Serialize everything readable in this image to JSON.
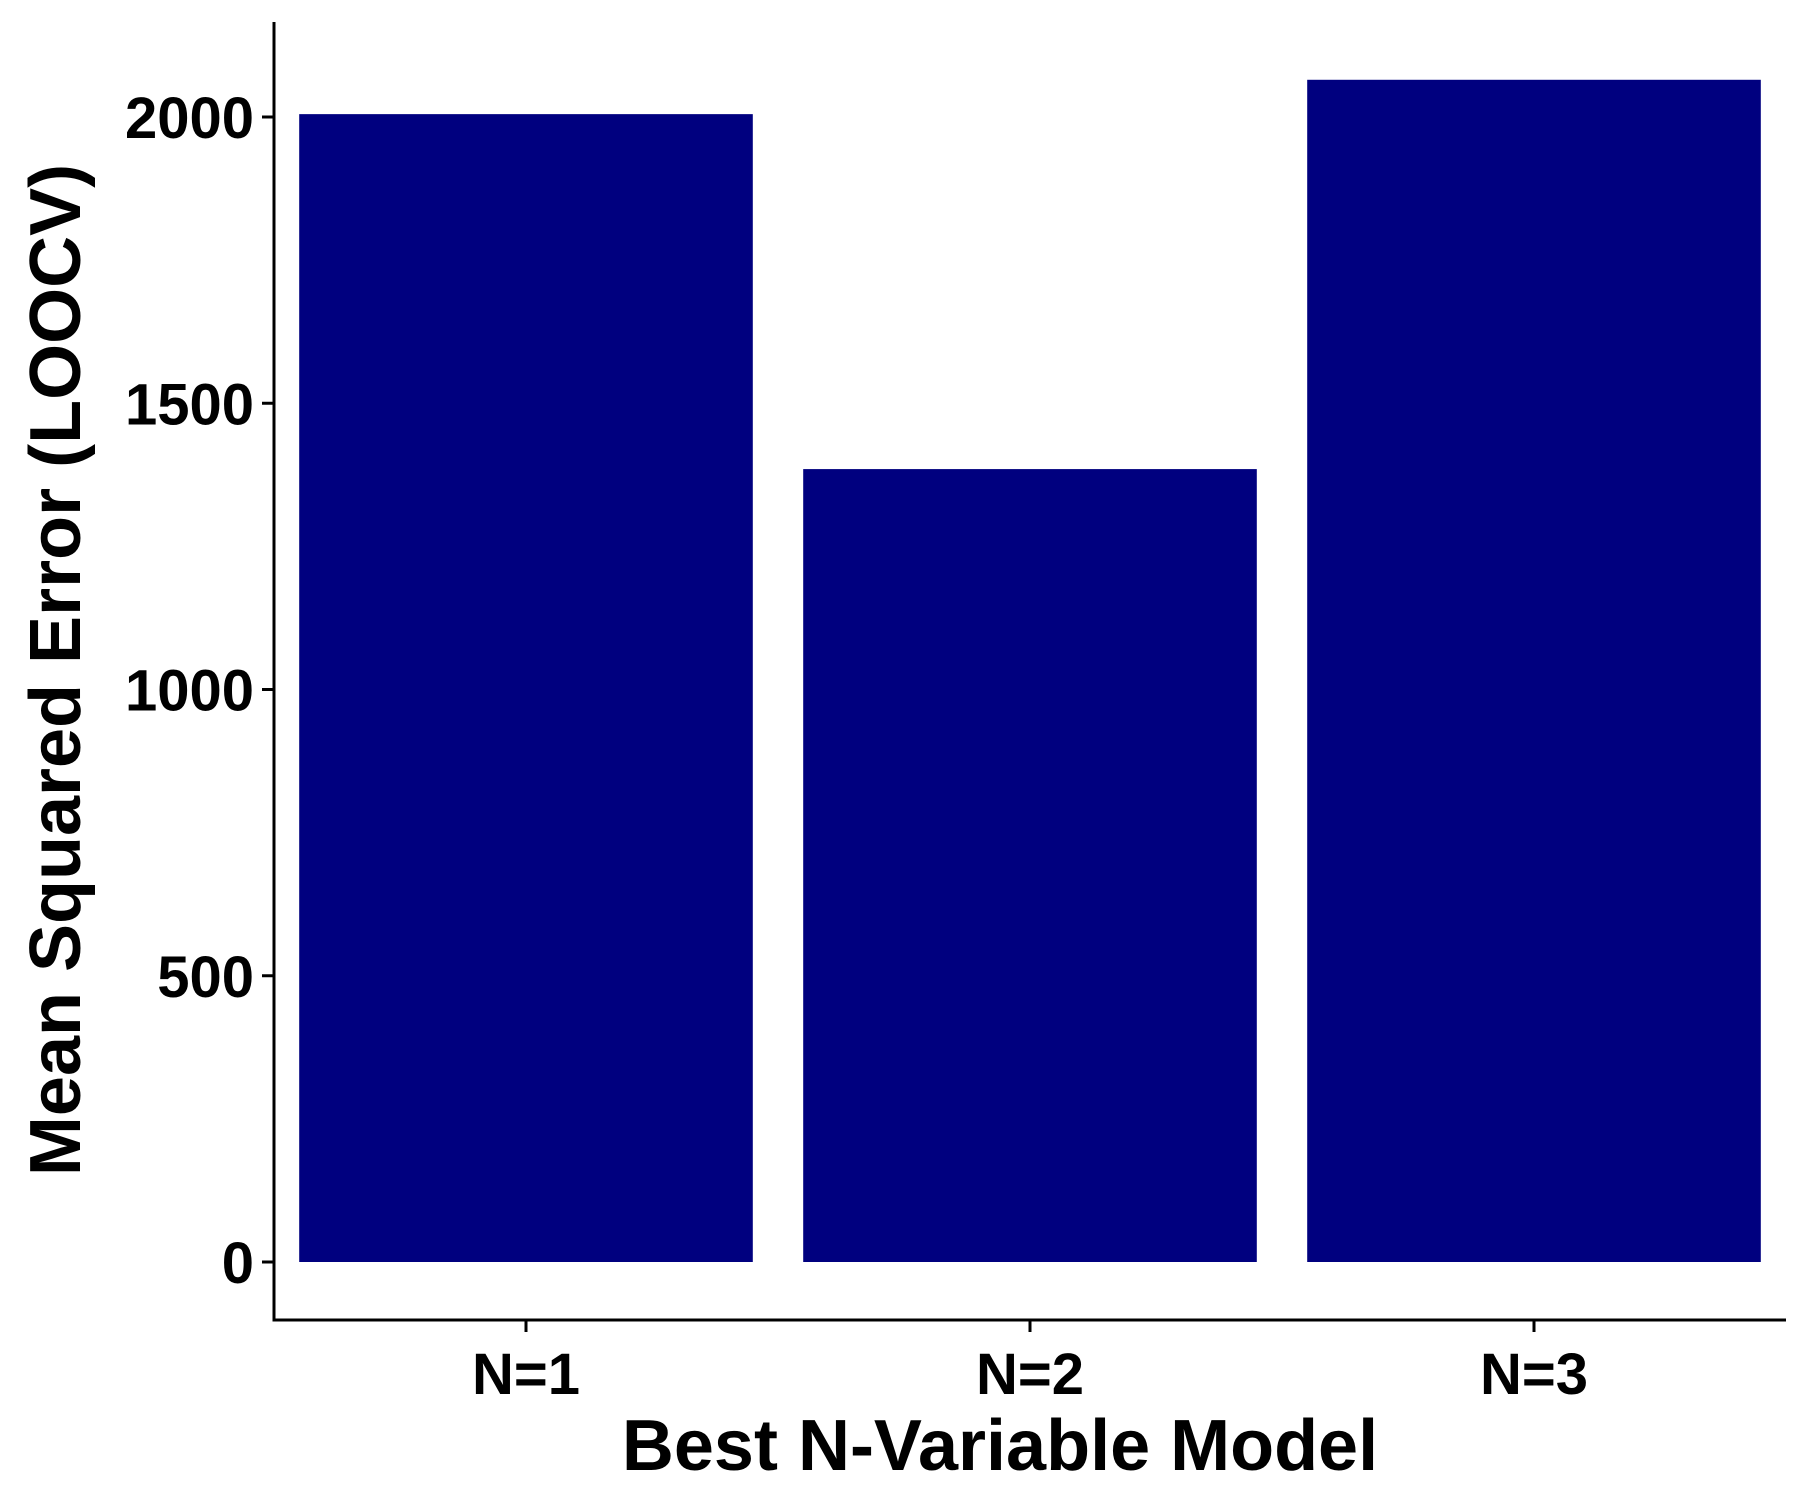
{
  "chart_data": {
    "type": "bar",
    "categories": [
      "N=1",
      "N=2",
      "N=3"
    ],
    "values": [
      2005,
      1385,
      2065
    ],
    "title": "",
    "xlabel": "Best N-Variable Model",
    "ylabel": "Mean Squared Error (LOOCV)",
    "ylim": [
      0,
      2200
    ],
    "yticks": [
      0,
      500,
      1000,
      1500,
      2000
    ],
    "grid": false,
    "bar_color": "#00007F",
    "axis_color": "#000000",
    "background": "#FFFFFF"
  }
}
